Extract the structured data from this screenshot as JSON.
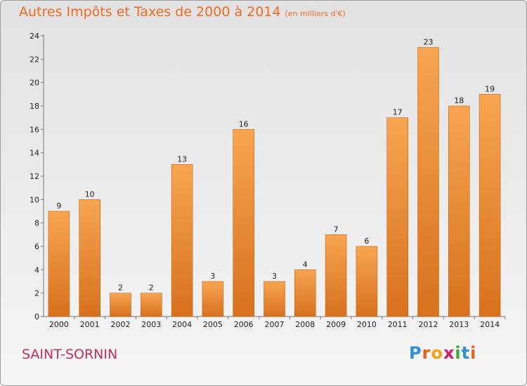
{
  "chart_data": {
    "type": "bar",
    "title": "Autres Impôts et Taxes de 2000 à 2014",
    "subtitle": "(en milliers d'€)",
    "categories": [
      "2000",
      "2001",
      "2002",
      "2003",
      "2004",
      "2005",
      "2006",
      "2007",
      "2008",
      "2009",
      "2010",
      "2011",
      "2012",
      "2013",
      "2014"
    ],
    "values": [
      9,
      10,
      2,
      2,
      13,
      3,
      16,
      3,
      4,
      7,
      6,
      17,
      23,
      18,
      19
    ],
    "ylim": [
      0,
      24
    ],
    "yticks": [
      0,
      2,
      4,
      6,
      8,
      10,
      12,
      14,
      16,
      18,
      20,
      22,
      24
    ],
    "grid": false,
    "bar_color_top": "#f7a552",
    "bar_color_bottom": "#d7711e"
  },
  "commune": "SAINT-SORNIN",
  "logo": {
    "letters": [
      {
        "ch": "P",
        "color": "#2e8fd6"
      },
      {
        "ch": "r",
        "color": "#e8601c"
      },
      {
        "ch": "o",
        "color": "#f2a21c"
      },
      {
        "ch": "x",
        "color": "#d4196b"
      },
      {
        "ch": "i",
        "color": "#3aa635"
      },
      {
        "ch": "t",
        "color": "#2e8fd6"
      },
      {
        "ch": "i",
        "color": "#e8601c"
      }
    ]
  }
}
